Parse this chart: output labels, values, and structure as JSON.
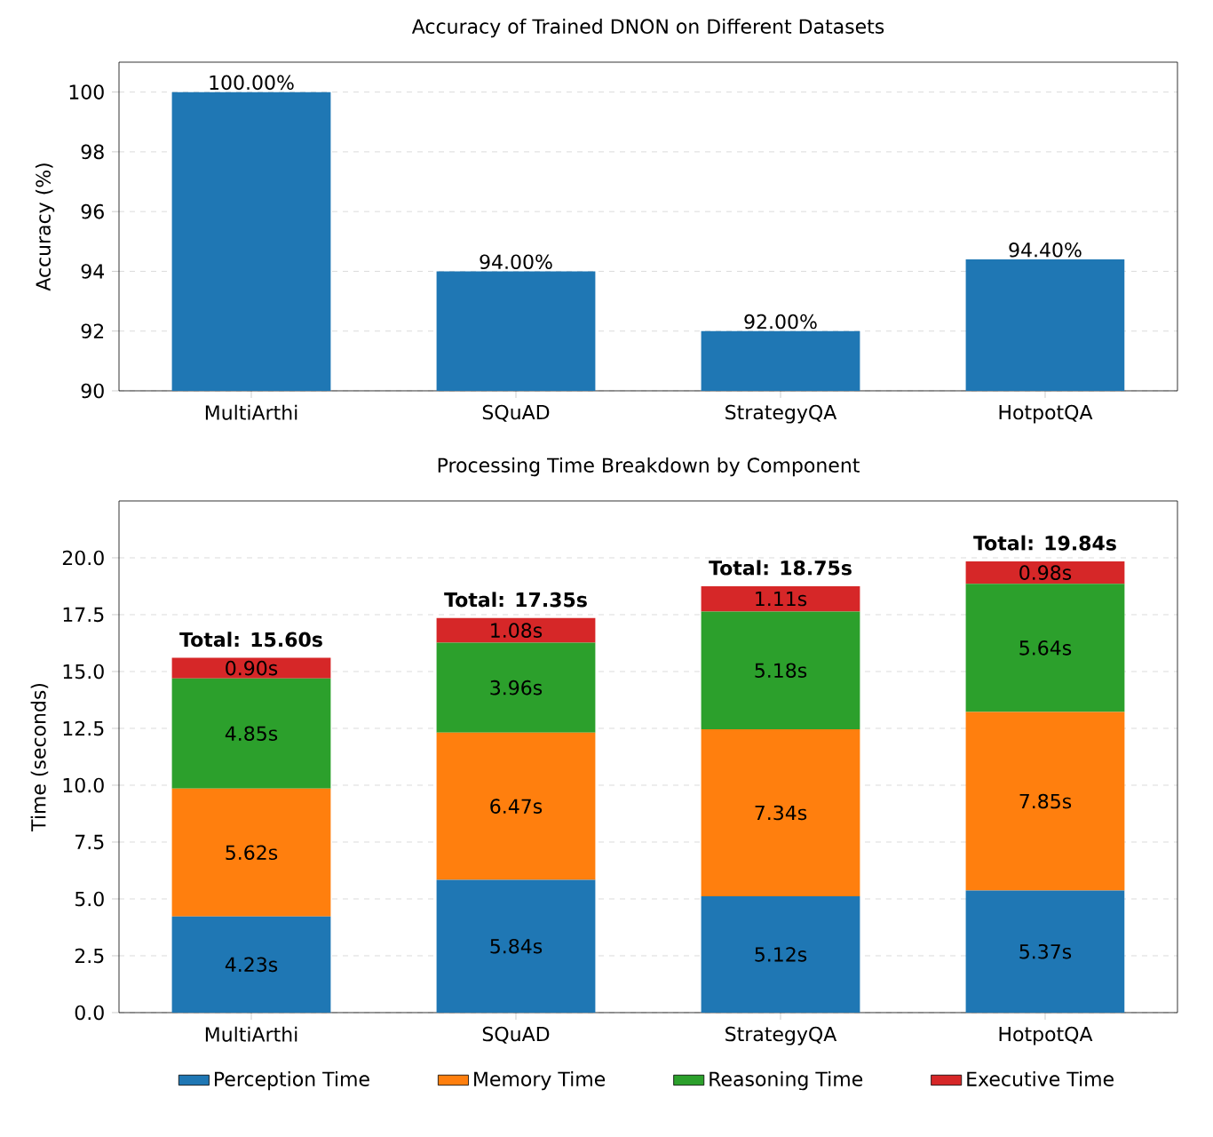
{
  "chart_data": [
    {
      "type": "bar",
      "title": "Accuracy of Trained DNON on Different Datasets",
      "ylabel": "Accuracy (%)",
      "categories": [
        "MultiArthi",
        "SQuAD",
        "StrategyQA",
        "HotpotQA"
      ],
      "values": [
        100,
        94,
        92,
        94.4
      ],
      "value_labels": [
        "100.00%",
        "94.00%",
        "92.00%",
        "94.40%"
      ],
      "color": "#1f77b4",
      "ylim": [
        90,
        101
      ],
      "yticks": [
        90,
        92,
        94,
        96,
        98,
        100
      ],
      "grid": "y"
    },
    {
      "type": "bar",
      "stacked": true,
      "title": "Processing Time Breakdown by Component",
      "ylabel": "Time (seconds)",
      "categories": [
        "MultiArthi",
        "SQuAD",
        "StrategyQA",
        "HotpotQA"
      ],
      "series": [
        {
          "name": "Perception Time",
          "color": "#1f77b4",
          "values": [
            4.23,
            5.84,
            5.12,
            5.37
          ],
          "value_labels": [
            "4.23s",
            "5.84s",
            "5.12s",
            "5.37s"
          ]
        },
        {
          "name": "Memory Time",
          "color": "#ff7f0e",
          "values": [
            5.62,
            6.47,
            7.34,
            7.85
          ],
          "value_labels": [
            "5.62s",
            "6.47s",
            "7.34s",
            "7.85s"
          ]
        },
        {
          "name": "Reasoning Time",
          "color": "#2ca02c",
          "values": [
            4.85,
            3.96,
            5.18,
            5.64
          ],
          "value_labels": [
            "4.85s",
            "3.96s",
            "5.18s",
            "5.64s"
          ]
        },
        {
          "name": "Executive Time",
          "color": "#d62728",
          "values": [
            0.9,
            1.08,
            1.11,
            0.98
          ],
          "value_labels": [
            "0.90s",
            "1.08s",
            "1.11s",
            "0.98s"
          ]
        }
      ],
      "totals": [
        "Total: 15.60s",
        "Total: 17.35s",
        "Total: 18.75s",
        "Total: 19.84s"
      ],
      "ylim": [
        0,
        22.5
      ],
      "yticks": [
        {
          "value": 0,
          "label": "0.0"
        },
        {
          "value": 2.5,
          "label": "2.5"
        },
        {
          "value": 5,
          "label": "5.0"
        },
        {
          "value": 7.5,
          "label": "7.5"
        },
        {
          "value": 10,
          "label": "10.0"
        },
        {
          "value": 12.5,
          "label": "12.5"
        },
        {
          "value": 15,
          "label": "15.0"
        },
        {
          "value": 17.5,
          "label": "17.5"
        },
        {
          "value": 20,
          "label": "20.0"
        }
      ],
      "grid": "y",
      "legend": "bottom"
    }
  ]
}
